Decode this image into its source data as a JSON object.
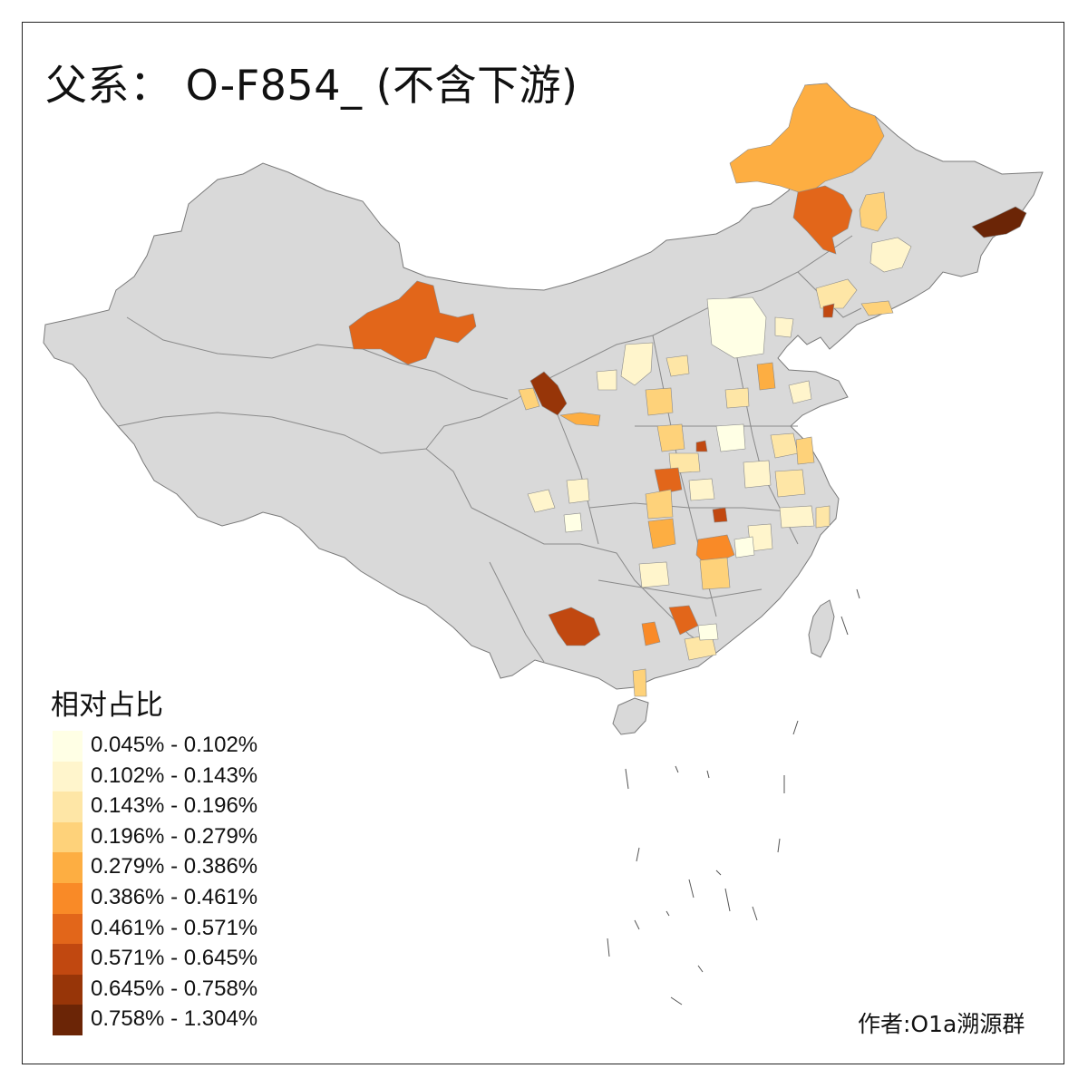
{
  "title": "父系： O-F854_ (不含下游)",
  "legend": {
    "title": "相对占比",
    "items": [
      {
        "label": "0.045% - 0.102%",
        "color": "#FFFFE5"
      },
      {
        "label": "0.102% - 0.143%",
        "color": "#FFF5CC"
      },
      {
        "label": "0.143% - 0.196%",
        "color": "#FEE6A6"
      },
      {
        "label": "0.196% - 0.279%",
        "color": "#FED27A"
      },
      {
        "label": "0.279% - 0.386%",
        "color": "#FDAE42"
      },
      {
        "label": "0.386% - 0.461%",
        "color": "#F98A27"
      },
      {
        "label": "0.461% - 0.571%",
        "color": "#E2661A"
      },
      {
        "label": "0.571% - 0.645%",
        "color": "#C14810"
      },
      {
        "label": "0.645% - 0.758%",
        "color": "#973508"
      },
      {
        "label": "0.758% - 1.304%",
        "color": "#6B2506"
      }
    ]
  },
  "author": "作者:O1a溯源群",
  "colors": {
    "land": "#D9D9D9",
    "border": "#8a8a8a",
    "background": "#FFFFFF"
  }
}
